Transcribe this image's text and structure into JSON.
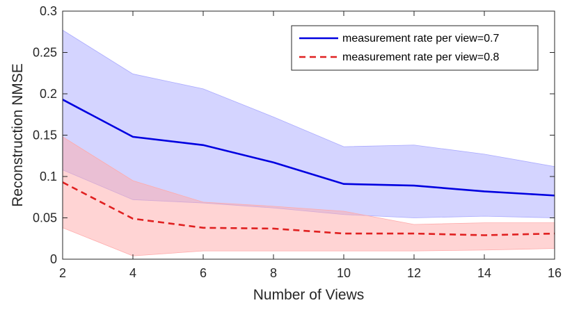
{
  "chart_data": {
    "type": "line",
    "title": "",
    "xlabel": "Number of Views",
    "ylabel": "Reconstruction NMSE",
    "xlim": [
      2,
      16
    ],
    "ylim": [
      0,
      0.3
    ],
    "x_ticks": [
      2,
      4,
      6,
      8,
      10,
      12,
      14,
      16
    ],
    "x_tick_labels": [
      "2",
      "4",
      "6",
      "8",
      "10",
      "12",
      "14",
      "16"
    ],
    "y_ticks": [
      0,
      0.05,
      0.1,
      0.15,
      0.2,
      0.25,
      0.3
    ],
    "y_tick_labels": [
      "0",
      "0.05",
      "0.1",
      "0.15",
      "0.2",
      "0.25",
      "0.3"
    ],
    "grid": false,
    "legend_position": "top-right",
    "series": [
      {
        "name": "measurement rate per view=0.7",
        "color": "#0000e0",
        "line_style": "solid",
        "x": [
          2,
          4,
          6,
          8,
          10,
          12,
          14,
          16
        ],
        "y": [
          0.193,
          0.148,
          0.138,
          0.117,
          0.091,
          0.089,
          0.082,
          0.077
        ],
        "band_upper": [
          0.277,
          0.224,
          0.206,
          0.172,
          0.136,
          0.138,
          0.127,
          0.112
        ],
        "band_lower": [
          0.108,
          0.072,
          0.068,
          0.062,
          0.054,
          0.05,
          0.052,
          0.05
        ],
        "band_color": "#aaaaff"
      },
      {
        "name": "measurement rate per view=0.8",
        "color": "#e02020",
        "line_style": "dashed",
        "x": [
          2,
          4,
          6,
          8,
          10,
          12,
          14,
          16
        ],
        "y": [
          0.093,
          0.049,
          0.038,
          0.037,
          0.031,
          0.031,
          0.029,
          0.031
        ],
        "band_upper": [
          0.148,
          0.095,
          0.069,
          0.064,
          0.058,
          0.042,
          0.044,
          0.044
        ],
        "band_lower": [
          0.038,
          0.004,
          0.01,
          0.01,
          0.01,
          0.01,
          0.011,
          0.013
        ],
        "band_color": "#ffaaaa"
      }
    ]
  }
}
